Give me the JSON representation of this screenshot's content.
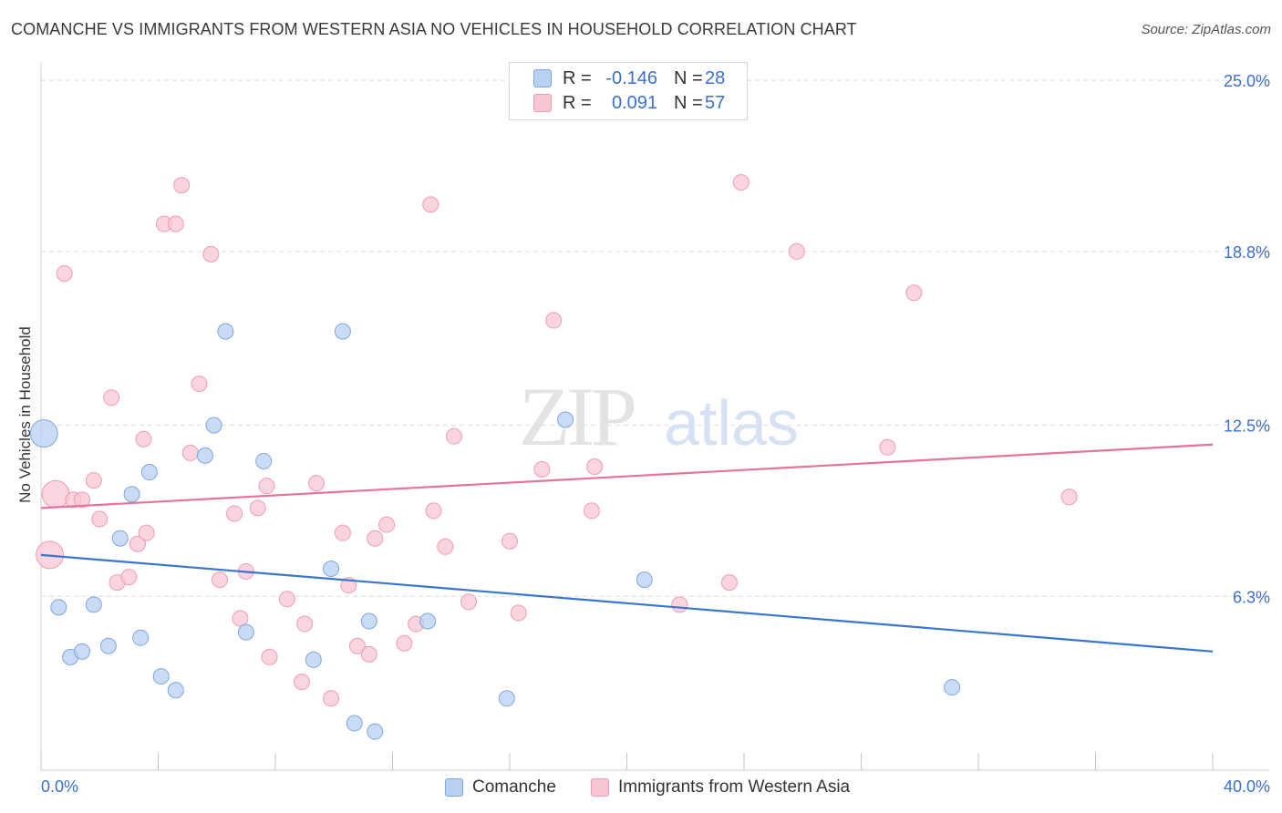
{
  "title": "COMANCHE VS IMMIGRANTS FROM WESTERN ASIA NO VEHICLES IN HOUSEHOLD CORRELATION CHART",
  "source": "Source: ZipAtlas.com",
  "watermark": {
    "zip": "ZIP",
    "atlas": "atlas"
  },
  "legend": {
    "rows": [
      {
        "r_label": "R =",
        "r_value": "-0.146",
        "n_label": "N =",
        "n_value": "28"
      },
      {
        "r_label": "R =",
        "r_value": "0.091",
        "n_label": "N =",
        "n_value": "57"
      }
    ]
  },
  "bottom_legend": {
    "series1": "Comanche",
    "series2": "Immigrants from Western Asia"
  },
  "colors": {
    "comanche_fill": "#b8d0f2",
    "comanche_stroke": "#7ea6e0",
    "comanche_line": "#3a76d0",
    "immigrants_fill": "#f8c5d3",
    "immigrants_stroke": "#ee9db4",
    "immigrants_line": "#e5739b",
    "tick_label": "#3b6fd1",
    "grid": "#dedede"
  },
  "chart_data": {
    "type": "scatter",
    "title": "COMANCHE VS IMMIGRANTS FROM WESTERN ASIA NO VEHICLES IN HOUSEHOLD CORRELATION CHART",
    "xlabel": "",
    "ylabel": "No Vehicles in Household",
    "xlim": [
      0,
      40
    ],
    "ylim": [
      0,
      25.6
    ],
    "x_tick_labels": [
      "0.0%",
      "40.0%"
    ],
    "y_ticks": [
      6.3,
      12.5,
      18.8,
      25.0
    ],
    "y_tick_labels": [
      "6.3%",
      "12.5%",
      "18.8%",
      "25.0%"
    ],
    "grid": true,
    "legend_position": "top-center",
    "series": [
      {
        "name": "Comanche",
        "trend": {
          "x": [
            0,
            40
          ],
          "y": [
            7.8,
            4.3
          ]
        },
        "points": [
          {
            "x": 0.1,
            "y": 12.2,
            "big": true
          },
          {
            "x": 0.6,
            "y": 5.9
          },
          {
            "x": 1.0,
            "y": 4.1
          },
          {
            "x": 1.4,
            "y": 4.3
          },
          {
            "x": 1.8,
            "y": 6.0
          },
          {
            "x": 2.3,
            "y": 4.5
          },
          {
            "x": 2.7,
            "y": 8.4
          },
          {
            "x": 3.1,
            "y": 10.0
          },
          {
            "x": 3.4,
            "y": 4.8
          },
          {
            "x": 3.7,
            "y": 10.8
          },
          {
            "x": 4.1,
            "y": 3.4
          },
          {
            "x": 4.6,
            "y": 2.9
          },
          {
            "x": 5.6,
            "y": 11.4
          },
          {
            "x": 5.9,
            "y": 12.5
          },
          {
            "x": 6.3,
            "y": 15.9
          },
          {
            "x": 7.0,
            "y": 5.0
          },
          {
            "x": 7.6,
            "y": 11.2
          },
          {
            "x": 9.3,
            "y": 4.0
          },
          {
            "x": 9.9,
            "y": 7.3
          },
          {
            "x": 10.3,
            "y": 15.9
          },
          {
            "x": 10.7,
            "y": 1.7
          },
          {
            "x": 11.2,
            "y": 5.4
          },
          {
            "x": 11.4,
            "y": 1.4
          },
          {
            "x": 13.2,
            "y": 5.4
          },
          {
            "x": 15.9,
            "y": 2.6
          },
          {
            "x": 17.9,
            "y": 12.7
          },
          {
            "x": 20.6,
            "y": 6.9
          },
          {
            "x": 31.1,
            "y": 3.0
          }
        ]
      },
      {
        "name": "Immigrants from Western Asia",
        "trend": {
          "x": [
            0,
            40
          ],
          "y": [
            9.5,
            11.8
          ]
        },
        "points": [
          {
            "x": 0.3,
            "y": 7.8,
            "big": true
          },
          {
            "x": 0.5,
            "y": 10.0,
            "big": true
          },
          {
            "x": 0.8,
            "y": 18.0
          },
          {
            "x": 1.1,
            "y": 9.8
          },
          {
            "x": 1.4,
            "y": 9.8
          },
          {
            "x": 1.8,
            "y": 10.5
          },
          {
            "x": 2.0,
            "y": 9.1
          },
          {
            "x": 2.4,
            "y": 13.5
          },
          {
            "x": 2.6,
            "y": 6.8
          },
          {
            "x": 3.0,
            "y": 7.0
          },
          {
            "x": 3.3,
            "y": 8.2
          },
          {
            "x": 3.5,
            "y": 12.0
          },
          {
            "x": 3.6,
            "y": 8.6
          },
          {
            "x": 4.2,
            "y": 19.8
          },
          {
            "x": 4.6,
            "y": 19.8
          },
          {
            "x": 4.8,
            "y": 21.2
          },
          {
            "x": 5.1,
            "y": 11.5
          },
          {
            "x": 5.4,
            "y": 14.0
          },
          {
            "x": 5.8,
            "y": 18.7
          },
          {
            "x": 6.1,
            "y": 6.9
          },
          {
            "x": 6.6,
            "y": 9.3
          },
          {
            "x": 6.8,
            "y": 5.5
          },
          {
            "x": 7.0,
            "y": 7.2
          },
          {
            "x": 7.4,
            "y": 9.5
          },
          {
            "x": 7.7,
            "y": 10.3
          },
          {
            "x": 7.8,
            "y": 4.1
          },
          {
            "x": 8.4,
            "y": 6.2
          },
          {
            "x": 8.9,
            "y": 3.2
          },
          {
            "x": 9.0,
            "y": 5.3
          },
          {
            "x": 9.4,
            "y": 10.4
          },
          {
            "x": 9.9,
            "y": 2.6
          },
          {
            "x": 10.3,
            "y": 8.6
          },
          {
            "x": 10.5,
            "y": 6.7
          },
          {
            "x": 10.8,
            "y": 4.5
          },
          {
            "x": 11.2,
            "y": 4.2
          },
          {
            "x": 11.4,
            "y": 8.4
          },
          {
            "x": 11.8,
            "y": 8.9
          },
          {
            "x": 12.4,
            "y": 4.6
          },
          {
            "x": 12.8,
            "y": 5.3
          },
          {
            "x": 13.3,
            "y": 20.5
          },
          {
            "x": 13.4,
            "y": 9.4
          },
          {
            "x": 13.8,
            "y": 8.1
          },
          {
            "x": 14.1,
            "y": 12.1
          },
          {
            "x": 14.6,
            "y": 6.1
          },
          {
            "x": 16.0,
            "y": 8.3
          },
          {
            "x": 16.3,
            "y": 5.7
          },
          {
            "x": 17.1,
            "y": 10.9
          },
          {
            "x": 17.5,
            "y": 16.3
          },
          {
            "x": 18.8,
            "y": 9.4
          },
          {
            "x": 18.9,
            "y": 11.0
          },
          {
            "x": 21.8,
            "y": 6.0
          },
          {
            "x": 23.5,
            "y": 6.8
          },
          {
            "x": 23.9,
            "y": 21.3
          },
          {
            "x": 25.8,
            "y": 18.8
          },
          {
            "x": 28.9,
            "y": 11.7
          },
          {
            "x": 29.8,
            "y": 17.3
          },
          {
            "x": 35.1,
            "y": 9.9
          }
        ]
      }
    ]
  }
}
